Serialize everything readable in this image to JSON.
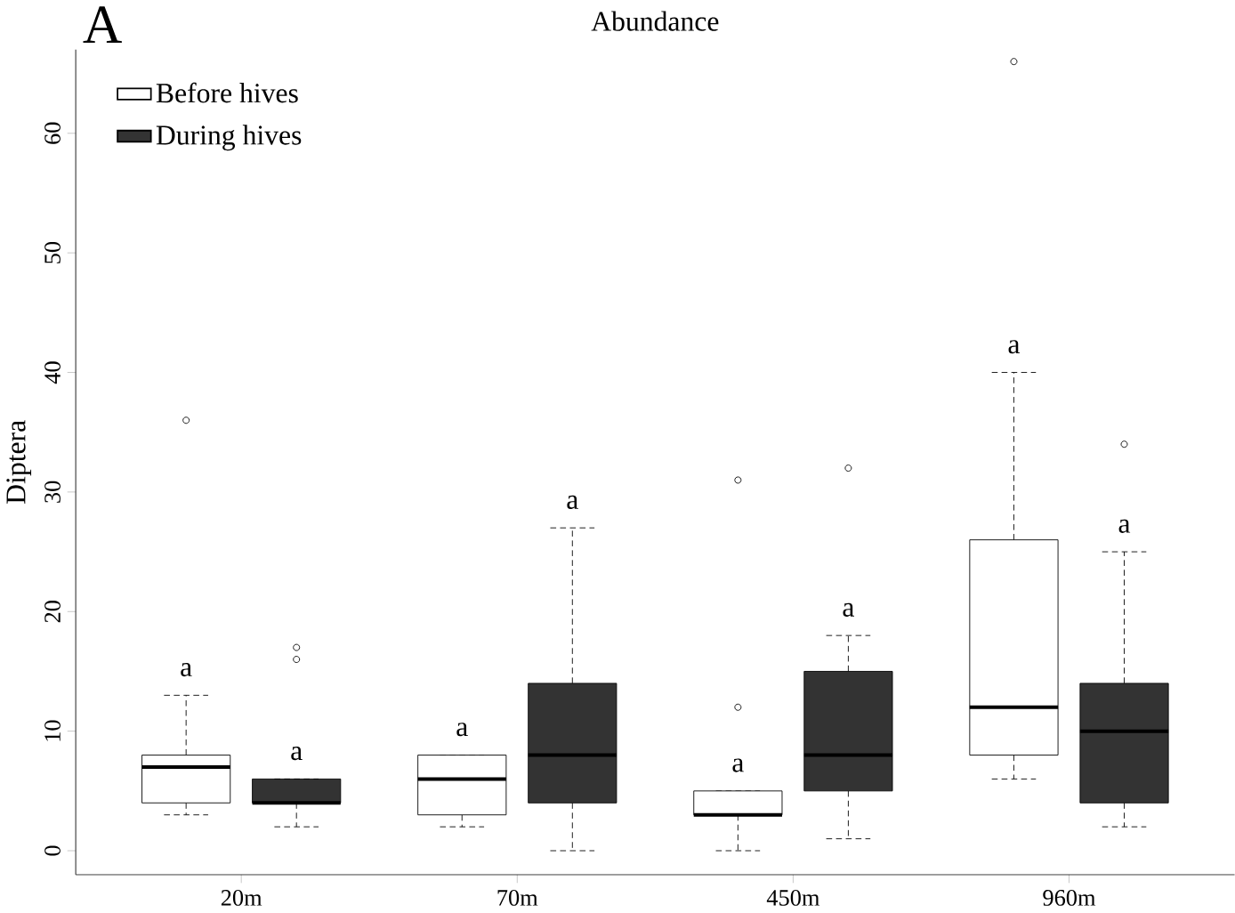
{
  "chart_data": {
    "type": "box",
    "title": "Abundance",
    "ylabel": "Diptera",
    "categories": [
      "20m",
      "70m",
      "450m",
      "960m"
    ],
    "series": [
      {
        "name": "Before hives",
        "color": "#ffffff",
        "boxes": [
          {
            "low": 3,
            "q1": 4,
            "median": 7,
            "q3": 8,
            "high": 13,
            "outliers": [
              36
            ]
          },
          {
            "low": 2,
            "q1": 3,
            "median": 6,
            "q3": 8,
            "high": 8
          },
          {
            "low": 0,
            "q1": 3,
            "median": 3,
            "q3": 5,
            "high": 5,
            "outliers": [
              12,
              31
            ]
          },
          {
            "low": 6,
            "q1": 8,
            "median": 12,
            "q3": 26,
            "high": 40,
            "outliers": [
              66
            ]
          }
        ]
      },
      {
        "name": "During hives",
        "color": "#333333",
        "boxes": [
          {
            "low": 2,
            "q1": 4,
            "median": 4,
            "q3": 6,
            "high": 6,
            "outliers": [
              16,
              17
            ]
          },
          {
            "low": 0,
            "q1": 4,
            "median": 8,
            "q3": 14,
            "high": 27
          },
          {
            "low": 1,
            "q1": 5,
            "median": 8,
            "q3": 15,
            "high": 18,
            "outliers": [
              32
            ]
          },
          {
            "low": 2,
            "q1": 4,
            "median": 10,
            "q3": 14,
            "high": 25,
            "outliers": [
              34
            ]
          }
        ]
      }
    ],
    "ylim": [
      -2,
      67
    ],
    "yticks": [
      0,
      10,
      20,
      30,
      40,
      50,
      60
    ],
    "legend": "top left",
    "annotations": [
      "A",
      "a",
      "a",
      "a",
      "a",
      "a",
      "a",
      "a",
      "a"
    ]
  }
}
